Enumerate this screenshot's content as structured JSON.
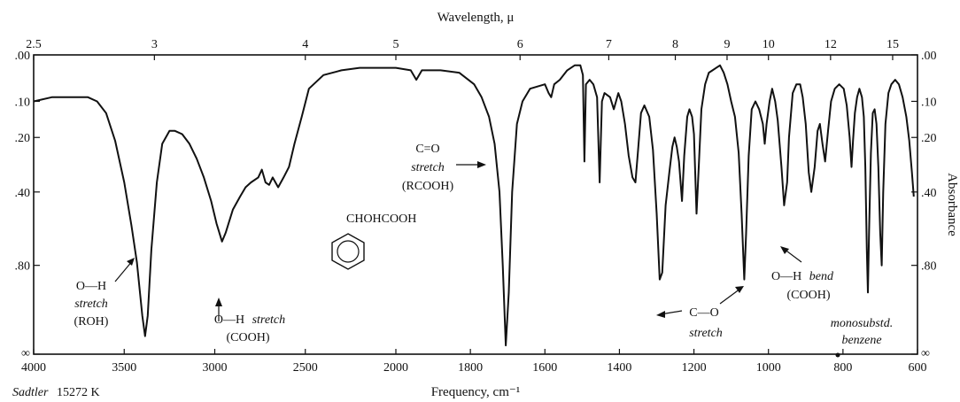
{
  "chart_data": {
    "type": "line",
    "top_axis": {
      "title": "Wavelength, μ",
      "ticks": [
        {
          "label": "2.5",
          "value": 2.5
        },
        {
          "label": "3",
          "value": 3
        },
        {
          "label": "4",
          "value": 4
        },
        {
          "label": "5",
          "value": 5
        },
        {
          "label": "6",
          "value": 6
        },
        {
          "label": "7",
          "value": 7
        },
        {
          "label": "8",
          "value": 8
        },
        {
          "label": "9",
          "value": 9
        },
        {
          "label": "10",
          "value": 10
        },
        {
          "label": "12",
          "value": 12
        },
        {
          "label": "15",
          "value": 15
        }
      ]
    },
    "bottom_axis": {
      "title": "Frequency, cm⁻¹",
      "range": [
        4000,
        600
      ],
      "ticks": [
        {
          "label": "4000",
          "value": 4000
        },
        {
          "label": "3500",
          "value": 3500
        },
        {
          "label": "3000",
          "value": 3000
        },
        {
          "label": "2500",
          "value": 2500
        },
        {
          "label": "2000",
          "value": 2000
        },
        {
          "label": "1800",
          "value": 1800
        },
        {
          "label": "1600",
          "value": 1600
        },
        {
          "label": "1400",
          "value": 1400
        },
        {
          "label": "1200",
          "value": 1200
        },
        {
          "label": "1000",
          "value": 1000
        },
        {
          "label": "800",
          "value": 800
        },
        {
          "label": "600",
          "value": 600
        }
      ]
    },
    "y_axis": {
      "title": "Absorbance",
      "scale": "log-transmittance",
      "ticks": [
        {
          "label": ".00",
          "value": 0.0
        },
        {
          "label": ".10",
          "value": 0.1
        },
        {
          "label": ".20",
          "value": 0.2
        },
        {
          "label": ".40",
          "value": 0.4
        },
        {
          "label": ".80",
          "value": 0.8
        },
        {
          "label": "∞",
          "value": "inf"
        }
      ]
    },
    "series": [
      {
        "color": "#111111",
        "points": [
          [
            4000,
            0.1
          ],
          [
            3900,
            0.09
          ],
          [
            3800,
            0.09
          ],
          [
            3700,
            0.09
          ],
          [
            3650,
            0.1
          ],
          [
            3600,
            0.13
          ],
          [
            3550,
            0.21
          ],
          [
            3500,
            0.36
          ],
          [
            3460,
            0.56
          ],
          [
            3430,
            0.78
          ],
          [
            3400,
            1.2
          ],
          [
            3385,
            1.4
          ],
          [
            3370,
            1.2
          ],
          [
            3350,
            0.7
          ],
          [
            3320,
            0.36
          ],
          [
            3290,
            0.22
          ],
          [
            3250,
            0.18
          ],
          [
            3220,
            0.18
          ],
          [
            3180,
            0.19
          ],
          [
            3140,
            0.22
          ],
          [
            3100,
            0.27
          ],
          [
            3060,
            0.34
          ],
          [
            3020,
            0.44
          ],
          [
            2990,
            0.55
          ],
          [
            2960,
            0.65
          ],
          [
            2940,
            0.6
          ],
          [
            2900,
            0.48
          ],
          [
            2860,
            0.42
          ],
          [
            2830,
            0.38
          ],
          [
            2800,
            0.36
          ],
          [
            2760,
            0.34
          ],
          [
            2740,
            0.31
          ],
          [
            2720,
            0.36
          ],
          [
            2700,
            0.37
          ],
          [
            2680,
            0.34
          ],
          [
            2650,
            0.38
          ],
          [
            2620,
            0.34
          ],
          [
            2590,
            0.3
          ],
          [
            2560,
            0.22
          ],
          [
            2520,
            0.14
          ],
          [
            2480,
            0.07
          ],
          [
            2400,
            0.04
          ],
          [
            2300,
            0.03
          ],
          [
            2200,
            0.025
          ],
          [
            2100,
            0.025
          ],
          [
            2000,
            0.025
          ],
          [
            1960,
            0.03
          ],
          [
            1945,
            0.05
          ],
          [
            1930,
            0.03
          ],
          [
            1880,
            0.03
          ],
          [
            1830,
            0.035
          ],
          [
            1790,
            0.06
          ],
          [
            1770,
            0.09
          ],
          [
            1750,
            0.14
          ],
          [
            1735,
            0.22
          ],
          [
            1722,
            0.4
          ],
          [
            1713,
            0.8
          ],
          [
            1705,
            1.5
          ],
          [
            1697,
            1.0
          ],
          [
            1688,
            0.4
          ],
          [
            1675,
            0.16
          ],
          [
            1660,
            0.1
          ],
          [
            1640,
            0.07
          ],
          [
            1620,
            0.065
          ],
          [
            1600,
            0.06
          ],
          [
            1590,
            0.08
          ],
          [
            1583,
            0.09
          ],
          [
            1575,
            0.06
          ],
          [
            1560,
            0.05
          ],
          [
            1540,
            0.03
          ],
          [
            1520,
            0.02
          ],
          [
            1505,
            0.02
          ],
          [
            1498,
            0.04
          ],
          [
            1494,
            0.28
          ],
          [
            1490,
            0.06
          ],
          [
            1480,
            0.05
          ],
          [
            1470,
            0.06
          ],
          [
            1460,
            0.09
          ],
          [
            1453,
            0.36
          ],
          [
            1447,
            0.1
          ],
          [
            1440,
            0.08
          ],
          [
            1425,
            0.09
          ],
          [
            1415,
            0.12
          ],
          [
            1403,
            0.08
          ],
          [
            1395,
            0.1
          ],
          [
            1385,
            0.16
          ],
          [
            1375,
            0.26
          ],
          [
            1365,
            0.34
          ],
          [
            1357,
            0.36
          ],
          [
            1350,
            0.24
          ],
          [
            1342,
            0.13
          ],
          [
            1333,
            0.11
          ],
          [
            1320,
            0.14
          ],
          [
            1310,
            0.24
          ],
          [
            1300,
            0.5
          ],
          [
            1292,
            0.9
          ],
          [
            1285,
            0.85
          ],
          [
            1276,
            0.46
          ],
          [
            1266,
            0.32
          ],
          [
            1258,
            0.23
          ],
          [
            1252,
            0.2
          ],
          [
            1246,
            0.23
          ],
          [
            1240,
            0.28
          ],
          [
            1232,
            0.44
          ],
          [
            1226,
            0.26
          ],
          [
            1218,
            0.14
          ],
          [
            1212,
            0.12
          ],
          [
            1205,
            0.14
          ],
          [
            1200,
            0.19
          ],
          [
            1193,
            0.5
          ],
          [
            1187,
            0.3
          ],
          [
            1180,
            0.12
          ],
          [
            1170,
            0.06
          ],
          [
            1160,
            0.035
          ],
          [
            1150,
            0.03
          ],
          [
            1140,
            0.025
          ],
          [
            1130,
            0.02
          ],
          [
            1120,
            0.035
          ],
          [
            1110,
            0.06
          ],
          [
            1100,
            0.1
          ],
          [
            1090,
            0.14
          ],
          [
            1080,
            0.25
          ],
          [
            1072,
            0.5
          ],
          [
            1065,
            0.9
          ],
          [
            1060,
            0.6
          ],
          [
            1053,
            0.26
          ],
          [
            1045,
            0.12
          ],
          [
            1035,
            0.1
          ],
          [
            1025,
            0.12
          ],
          [
            1015,
            0.16
          ],
          [
            1010,
            0.22
          ],
          [
            1005,
            0.16
          ],
          [
            997,
            0.1
          ],
          [
            990,
            0.07
          ],
          [
            982,
            0.1
          ],
          [
            975,
            0.15
          ],
          [
            965,
            0.3
          ],
          [
            958,
            0.46
          ],
          [
            950,
            0.36
          ],
          [
            945,
            0.2
          ],
          [
            935,
            0.08
          ],
          [
            925,
            0.06
          ],
          [
            915,
            0.06
          ],
          [
            908,
            0.09
          ],
          [
            900,
            0.16
          ],
          [
            892,
            0.32
          ],
          [
            885,
            0.4
          ],
          [
            876,
            0.3
          ],
          [
            868,
            0.18
          ],
          [
            862,
            0.16
          ],
          [
            855,
            0.22
          ],
          [
            848,
            0.28
          ],
          [
            840,
            0.18
          ],
          [
            832,
            0.1
          ],
          [
            822,
            0.07
          ],
          [
            810,
            0.06
          ],
          [
            798,
            0.07
          ],
          [
            790,
            0.11
          ],
          [
            782,
            0.2
          ],
          [
            777,
            0.3
          ],
          [
            773,
            0.21
          ],
          [
            768,
            0.13
          ],
          [
            762,
            0.09
          ],
          [
            756,
            0.07
          ],
          [
            749,
            0.09
          ],
          [
            744,
            0.14
          ],
          [
            740,
            0.3
          ],
          [
            736,
            0.7
          ],
          [
            733,
            1.0
          ],
          [
            730,
            0.6
          ],
          [
            725,
            0.25
          ],
          [
            720,
            0.13
          ],
          [
            715,
            0.12
          ],
          [
            710,
            0.16
          ],
          [
            705,
            0.3
          ],
          [
            700,
            0.6
          ],
          [
            696,
            0.8
          ],
          [
            692,
            0.4
          ],
          [
            686,
            0.16
          ],
          [
            678,
            0.08
          ],
          [
            670,
            0.06
          ],
          [
            660,
            0.05
          ],
          [
            650,
            0.06
          ],
          [
            640,
            0.09
          ],
          [
            630,
            0.14
          ],
          [
            622,
            0.21
          ],
          [
            615,
            0.32
          ],
          [
            610,
            0.42
          ]
        ]
      }
    ],
    "annotations": {
      "oh_roh": {
        "line1": "O—H",
        "line2": "stretch",
        "line3": "(ROH)"
      },
      "oh_cooh": {
        "line1a": "O—H",
        "line1b": "stretch",
        "line2": "(COOH)"
      },
      "co_stretch": {
        "line1": "C=O",
        "line2": "stretch",
        "line3": "(RCOOH)"
      },
      "c_o": {
        "line1": "C—O",
        "line2": "stretch"
      },
      "oh_bend": {
        "line1a": "O—H",
        "line1b": "bend",
        "line2": "(COOH)"
      },
      "monosub": {
        "line1": "monosubstd.",
        "line2": "benzene"
      },
      "compound": "CHOHCOOH"
    },
    "source": {
      "name": "Sadtler",
      "number": "15272 K"
    }
  }
}
